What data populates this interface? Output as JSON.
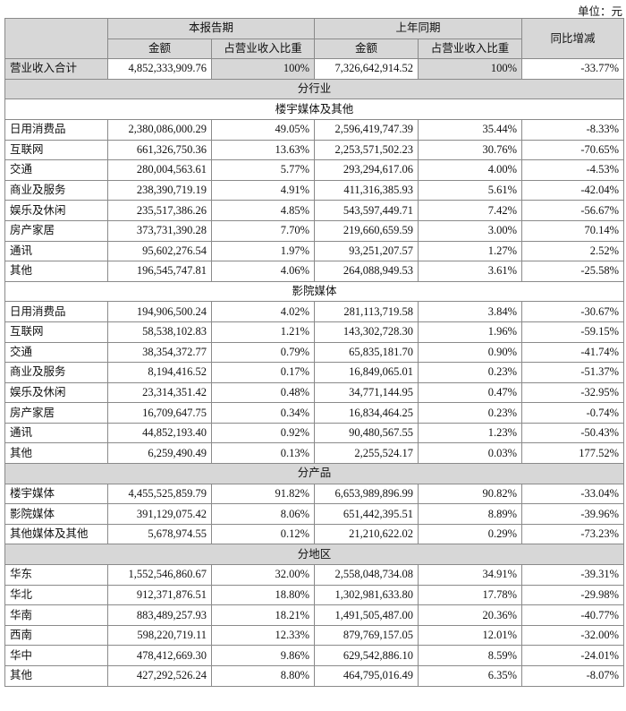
{
  "unit_label": "单位：元",
  "header": {
    "current_period": "本报告期",
    "prior_period": "上年同期",
    "yoy_change": "同比增减",
    "amount": "金额",
    "share": "占营业收入比重"
  },
  "total": {
    "label": "营业收入合计",
    "cur_amount": "4,852,333,909.76",
    "cur_share": "100%",
    "prev_amount": "7,326,642,914.52",
    "prev_share": "100%",
    "change": "-33.77%"
  },
  "sections": {
    "by_industry": "分行业",
    "building_media": "楼宇媒体及其他",
    "cinema_media": "影院媒体",
    "by_product": "分产品",
    "by_region": "分地区"
  },
  "building_rows": [
    {
      "label": "日用消费品",
      "cur_amount": "2,380,086,000.29",
      "cur_share": "49.05%",
      "prev_amount": "2,596,419,747.39",
      "prev_share": "35.44%",
      "change": "-8.33%"
    },
    {
      "label": "互联网",
      "cur_amount": "661,326,750.36",
      "cur_share": "13.63%",
      "prev_amount": "2,253,571,502.23",
      "prev_share": "30.76%",
      "change": "-70.65%"
    },
    {
      "label": "交通",
      "cur_amount": "280,004,563.61",
      "cur_share": "5.77%",
      "prev_amount": "293,294,617.06",
      "prev_share": "4.00%",
      "change": "-4.53%"
    },
    {
      "label": "商业及服务",
      "cur_amount": "238,390,719.19",
      "cur_share": "4.91%",
      "prev_amount": "411,316,385.93",
      "prev_share": "5.61%",
      "change": "-42.04%"
    },
    {
      "label": "娱乐及休闲",
      "cur_amount": "235,517,386.26",
      "cur_share": "4.85%",
      "prev_amount": "543,597,449.71",
      "prev_share": "7.42%",
      "change": "-56.67%"
    },
    {
      "label": "房产家居",
      "cur_amount": "373,731,390.28",
      "cur_share": "7.70%",
      "prev_amount": "219,660,659.59",
      "prev_share": "3.00%",
      "change": "70.14%"
    },
    {
      "label": "通讯",
      "cur_amount": "95,602,276.54",
      "cur_share": "1.97%",
      "prev_amount": "93,251,207.57",
      "prev_share": "1.27%",
      "change": "2.52%"
    },
    {
      "label": "其他",
      "cur_amount": "196,545,747.81",
      "cur_share": "4.06%",
      "prev_amount": "264,088,949.53",
      "prev_share": "3.61%",
      "change": "-25.58%"
    }
  ],
  "cinema_rows": [
    {
      "label": "日用消费品",
      "cur_amount": "194,906,500.24",
      "cur_share": "4.02%",
      "prev_amount": "281,113,719.58",
      "prev_share": "3.84%",
      "change": "-30.67%"
    },
    {
      "label": "互联网",
      "cur_amount": "58,538,102.83",
      "cur_share": "1.21%",
      "prev_amount": "143,302,728.30",
      "prev_share": "1.96%",
      "change": "-59.15%"
    },
    {
      "label": "交通",
      "cur_amount": "38,354,372.77",
      "cur_share": "0.79%",
      "prev_amount": "65,835,181.70",
      "prev_share": "0.90%",
      "change": "-41.74%"
    },
    {
      "label": "商业及服务",
      "cur_amount": "8,194,416.52",
      "cur_share": "0.17%",
      "prev_amount": "16,849,065.01",
      "prev_share": "0.23%",
      "change": "-51.37%"
    },
    {
      "label": "娱乐及休闲",
      "cur_amount": "23,314,351.42",
      "cur_share": "0.48%",
      "prev_amount": "34,771,144.95",
      "prev_share": "0.47%",
      "change": "-32.95%"
    },
    {
      "label": "房产家居",
      "cur_amount": "16,709,647.75",
      "cur_share": "0.34%",
      "prev_amount": "16,834,464.25",
      "prev_share": "0.23%",
      "change": "-0.74%"
    },
    {
      "label": "通讯",
      "cur_amount": "44,852,193.40",
      "cur_share": "0.92%",
      "prev_amount": "90,480,567.55",
      "prev_share": "1.23%",
      "change": "-50.43%"
    },
    {
      "label": "其他",
      "cur_amount": "6,259,490.49",
      "cur_share": "0.13%",
      "prev_amount": "2,255,524.17",
      "prev_share": "0.03%",
      "change": "177.52%"
    }
  ],
  "product_rows": [
    {
      "label": "楼宇媒体",
      "cur_amount": "4,455,525,859.79",
      "cur_share": "91.82%",
      "prev_amount": "6,653,989,896.99",
      "prev_share": "90.82%",
      "change": "-33.04%"
    },
    {
      "label": "影院媒体",
      "cur_amount": "391,129,075.42",
      "cur_share": "8.06%",
      "prev_amount": "651,442,395.51",
      "prev_share": "8.89%",
      "change": "-39.96%"
    },
    {
      "label": "其他媒体及其他",
      "cur_amount": "5,678,974.55",
      "cur_share": "0.12%",
      "prev_amount": "21,210,622.02",
      "prev_share": "0.29%",
      "change": "-73.23%"
    }
  ],
  "region_rows": [
    {
      "label": "华东",
      "cur_amount": "1,552,546,860.67",
      "cur_share": "32.00%",
      "prev_amount": "2,558,048,734.08",
      "prev_share": "34.91%",
      "change": "-39.31%"
    },
    {
      "label": "华北",
      "cur_amount": "912,371,876.51",
      "cur_share": "18.80%",
      "prev_amount": "1,302,981,633.80",
      "prev_share": "17.78%",
      "change": "-29.98%"
    },
    {
      "label": "华南",
      "cur_amount": "883,489,257.93",
      "cur_share": "18.21%",
      "prev_amount": "1,491,505,487.00",
      "prev_share": "20.36%",
      "change": "-40.77%"
    },
    {
      "label": "西南",
      "cur_amount": "598,220,719.11",
      "cur_share": "12.33%",
      "prev_amount": "879,769,157.05",
      "prev_share": "12.01%",
      "change": "-32.00%"
    },
    {
      "label": "华中",
      "cur_amount": "478,412,669.30",
      "cur_share": "9.86%",
      "prev_amount": "629,542,886.10",
      "prev_share": "8.59%",
      "change": "-24.01%"
    },
    {
      "label": "其他",
      "cur_amount": "427,292,526.24",
      "cur_share": "8.80%",
      "prev_amount": "464,795,016.49",
      "prev_share": "6.35%",
      "change": "-8.07%"
    }
  ]
}
